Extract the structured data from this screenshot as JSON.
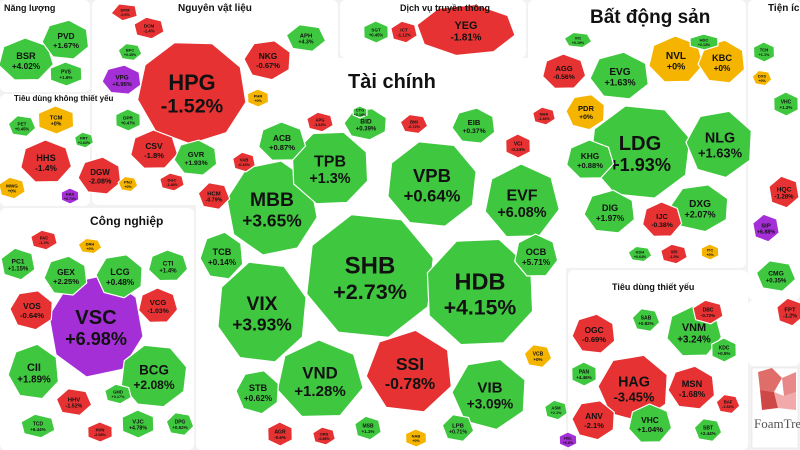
{
  "branding": {
    "logo_text": "FoamTree"
  },
  "colors": {
    "up": "#3fc73f",
    "down": "#e63232",
    "flat": "#f4b400",
    "ceiling": "#a52fd6",
    "sector_bg": "#ffffff"
  },
  "chart_data": {
    "type": "treemap",
    "metric": "percent change",
    "sectors": [
      {
        "name": "Năng lượng"
      },
      {
        "name": "Nguyên vật liệu"
      },
      {
        "name": "Dịch vụ truyền thông"
      },
      {
        "name": "Bất động sản"
      },
      {
        "name": "Tiện íc"
      },
      {
        "name": "Tài chính"
      },
      {
        "name": "Tiêu dùng không thiết yếu"
      },
      {
        "name": "Công nghiệp"
      },
      {
        "name": "Tiêu dùng thiết yếu"
      }
    ],
    "stocks": [
      {
        "symbol": "HPG",
        "change": "-1.52%",
        "status": "down",
        "sector": "Nguyên vật liệu"
      },
      {
        "symbol": "DCM",
        "change": "-1.4%",
        "status": "down",
        "sector": "Nguyên vật liệu"
      },
      {
        "symbol": "DPM",
        "change": "-0.6%",
        "status": "down",
        "sector": "Nguyên vật liệu"
      },
      {
        "symbol": "BFC",
        "change": "+0.45%",
        "status": "up",
        "sector": "Nguyên vật liệu"
      },
      {
        "symbol": "VPG",
        "change": "+6.95%",
        "status": "ceiling",
        "sector": "Nguyên vật liệu"
      },
      {
        "symbol": "NKG",
        "change": "-0.67%",
        "status": "down",
        "sector": "Nguyên vật liệu"
      },
      {
        "symbol": "CSV",
        "change": "-1.8%",
        "status": "down",
        "sector": "Nguyên vật liệu"
      },
      {
        "symbol": "GVR",
        "change": "+1.93%",
        "status": "up",
        "sector": "Nguyên vật liệu"
      },
      {
        "symbol": "PHR",
        "change": "+0%",
        "status": "flat",
        "sector": "Nguyên vật liệu"
      },
      {
        "symbol": "APH",
        "change": "+4.3%",
        "status": "up",
        "sector": "Nguyên vật liệu"
      },
      {
        "symbol": "DGC",
        "change": "-1.48%",
        "status": "down",
        "sector": "Nguyên vật liệu"
      },
      {
        "symbol": "DPR",
        "change": "+0.47%",
        "status": "up",
        "sector": "Nguyên vật liệu"
      },
      {
        "symbol": "BSR",
        "change": "+4.02%",
        "status": "up",
        "sector": "Năng lượng"
      },
      {
        "symbol": "PVD",
        "change": "+1.67%",
        "status": "up",
        "sector": "Năng lượng"
      },
      {
        "symbol": "PVS",
        "change": "+1.6%",
        "status": "up",
        "sector": "Năng lượng"
      },
      {
        "symbol": "YEG",
        "change": "-1.81%",
        "status": "down",
        "sector": "Dịch vụ truyền thông"
      },
      {
        "symbol": "ICT",
        "change": "-1.12%",
        "status": "down",
        "sector": "Dịch vụ truyền thông"
      },
      {
        "symbol": "SGT",
        "change": "+0.45%",
        "status": "up",
        "sector": "Dịch vụ truyền thông"
      },
      {
        "symbol": "HHS",
        "change": "-1.4%",
        "status": "down",
        "sector": "Tiêu dùng không thiết yếu"
      },
      {
        "symbol": "DGW",
        "change": "-2.08%",
        "status": "down",
        "sector": "Tiêu dùng không thiết yếu"
      },
      {
        "symbol": "TCM",
        "change": "+0%",
        "status": "flat",
        "sector": "Tiêu dùng không thiết yếu"
      },
      {
        "symbol": "PET",
        "change": "+0.45%",
        "status": "up",
        "sector": "Tiêu dùng không thiết yếu"
      },
      {
        "symbol": "MWG",
        "change": "+0%",
        "status": "flat",
        "sector": "Tiêu dùng không thiết yếu"
      },
      {
        "symbol": "HAX",
        "change": "+6.71%",
        "status": "ceiling",
        "sector": "Tiêu dùng không thiết yếu"
      },
      {
        "symbol": "PNJ",
        "change": "+0%",
        "status": "flat",
        "sector": "Tiêu dùng không thiết yếu"
      },
      {
        "symbol": "FRT",
        "change": "+1.62%",
        "status": "up",
        "sector": "Tiêu dùng không thiết yếu"
      },
      {
        "symbol": "SHB",
        "change": "+2.73%",
        "status": "up",
        "sector": "Tài chính"
      },
      {
        "symbol": "MBB",
        "change": "+3.65%",
        "status": "up",
        "sector": "Tài chính"
      },
      {
        "symbol": "TPB",
        "change": "+1.3%",
        "status": "up",
        "sector": "Tài chính"
      },
      {
        "symbol": "VPB",
        "change": "+0.64%",
        "status": "up",
        "sector": "Tài chính"
      },
      {
        "symbol": "EVF",
        "change": "+6.08%",
        "status": "up",
        "sector": "Tài chính"
      },
      {
        "symbol": "HDB",
        "change": "+4.15%",
        "status": "up",
        "sector": "Tài chính"
      },
      {
        "symbol": "VIX",
        "change": "+3.93%",
        "status": "up",
        "sector": "Tài chính"
      },
      {
        "symbol": "VND",
        "change": "+1.28%",
        "status": "up",
        "sector": "Tài chính"
      },
      {
        "symbol": "SSI",
        "change": "-0.78%",
        "status": "down",
        "sector": "Tài chính"
      },
      {
        "symbol": "VIB",
        "change": "+3.09%",
        "status": "up",
        "sector": "Tài chính"
      },
      {
        "symbol": "ACB",
        "change": "+0.87%",
        "status": "up",
        "sector": "Tài chính"
      },
      {
        "symbol": "TCB",
        "change": "+0.14%",
        "status": "up",
        "sector": "Tài chính"
      },
      {
        "symbol": "STB",
        "change": "+0.62%",
        "status": "up",
        "sector": "Tài chính"
      },
      {
        "symbol": "OCB",
        "change": "+5.71%",
        "status": "up",
        "sector": "Tài chính"
      },
      {
        "symbol": "APG",
        "change": "-1.63%",
        "status": "down",
        "sector": "Tài chính"
      },
      {
        "symbol": "BID",
        "change": "+0.39%",
        "status": "up",
        "sector": "Tài chính"
      },
      {
        "symbol": "BMI",
        "change": "-0.72%",
        "status": "down",
        "sector": "Tài chính"
      },
      {
        "symbol": "EIB",
        "change": "+0.37%",
        "status": "up",
        "sector": "Tài chính"
      },
      {
        "symbol": "VCI",
        "change": "-0.24%",
        "status": "down",
        "sector": "Tài chính"
      },
      {
        "symbol": "HCM",
        "change": "-0.79%",
        "status": "down",
        "sector": "Tài chính"
      },
      {
        "symbol": "VAB",
        "change": "-0.33%",
        "status": "down",
        "sector": "Tài chính"
      },
      {
        "symbol": "CTG",
        "change": "+0.18%",
        "status": "up",
        "sector": "Tài chính"
      },
      {
        "symbol": "LPB",
        "change": "+0.71%",
        "status": "up",
        "sector": "Tài chính"
      },
      {
        "symbol": "MSB",
        "change": "+1.1%",
        "status": "up",
        "sector": "Tài chính"
      },
      {
        "symbol": "AGR",
        "change": "-0.6%",
        "status": "down",
        "sector": "Tài chính"
      },
      {
        "symbol": "VCB",
        "change": "+0%",
        "status": "flat",
        "sector": "Tài chính"
      },
      {
        "symbol": "ORS",
        "change": "-0.85%",
        "status": "down",
        "sector": "Tài chính"
      },
      {
        "symbol": "NAB",
        "change": "+0%",
        "status": "flat",
        "sector": "Tài chính"
      },
      {
        "symbol": "VSC",
        "change": "+6.98%",
        "status": "ceiling",
        "sector": "Công nghiệp"
      },
      {
        "symbol": "GEX",
        "change": "+2.25%",
        "status": "up",
        "sector": "Công nghiệp"
      },
      {
        "symbol": "LCG",
        "change": "+0.48%",
        "status": "up",
        "sector": "Công nghiệp"
      },
      {
        "symbol": "CTI",
        "change": "+1.4%",
        "status": "up",
        "sector": "Công nghiệp"
      },
      {
        "symbol": "PC1",
        "change": "+1.15%",
        "status": "up",
        "sector": "Công nghiệp"
      },
      {
        "symbol": "VOS",
        "change": "-0.64%",
        "status": "down",
        "sector": "Công nghiệp"
      },
      {
        "symbol": "VCG",
        "change": "-1.03%",
        "status": "down",
        "sector": "Công nghiệp"
      },
      {
        "symbol": "CII",
        "change": "+1.89%",
        "status": "up",
        "sector": "Công nghiệp"
      },
      {
        "symbol": "BCG",
        "change": "+2.08%",
        "status": "up",
        "sector": "Công nghiệp"
      },
      {
        "symbol": "HHV",
        "change": "-1.52%",
        "status": "down",
        "sector": "Công nghiệp"
      },
      {
        "symbol": "GMD",
        "change": "+0.17%",
        "status": "up",
        "sector": "Công nghiệp"
      },
      {
        "symbol": "VJC",
        "change": "+4.78%",
        "status": "up",
        "sector": "Công nghiệp"
      },
      {
        "symbol": "DPG",
        "change": "+0.52%",
        "status": "up",
        "sector": "Công nghiệp"
      },
      {
        "symbol": "TCD",
        "change": "+6.44%",
        "status": "up",
        "sector": "Công nghiệp"
      },
      {
        "symbol": "HVN",
        "change": "-2.58%",
        "status": "down",
        "sector": "Công nghiệp"
      },
      {
        "symbol": "DRH",
        "change": "+0%",
        "status": "flat",
        "sector": "Công nghiệp"
      },
      {
        "symbol": "PAC",
        "change": "-1.2%",
        "status": "down",
        "sector": "Công nghiệp"
      },
      {
        "symbol": "LDG",
        "change": "+1.93%",
        "status": "up",
        "sector": "Bất động sản"
      },
      {
        "symbol": "NVL",
        "change": "+0%",
        "status": "flat",
        "sector": "Bất động sản"
      },
      {
        "symbol": "KBC",
        "change": "+0%",
        "status": "flat",
        "sector": "Bất động sản"
      },
      {
        "symbol": "NLG",
        "change": "+1.63%",
        "status": "up",
        "sector": "Bất động sản"
      },
      {
        "symbol": "AGG",
        "change": "-0.56%",
        "status": "down",
        "sector": "Bất động sản"
      },
      {
        "symbol": "EVG",
        "change": "+1.63%",
        "status": "up",
        "sector": "Bất động sản"
      },
      {
        "symbol": "PDR",
        "change": "+0%",
        "status": "flat",
        "sector": "Bất động sản"
      },
      {
        "symbol": "KHG",
        "change": "+0.88%",
        "status": "up",
        "sector": "Bất động sản"
      },
      {
        "symbol": "DIG",
        "change": "+1.97%",
        "status": "up",
        "sector": "Bất động sản"
      },
      {
        "symbol": "DXG",
        "change": "+2.07%",
        "status": "up",
        "sector": "Bất động sản"
      },
      {
        "symbol": "IJC",
        "change": "-0.38%",
        "status": "down",
        "sector": "Bất động sản"
      },
      {
        "symbol": "VPI",
        "change": "-1.5%",
        "status": "down",
        "sector": "Bất động sản"
      },
      {
        "symbol": "HDC",
        "change": "+2.13%",
        "status": "up",
        "sector": "Bất động sản"
      },
      {
        "symbol": "VIC",
        "change": "+0.19%",
        "status": "up",
        "sector": "Bất động sản"
      },
      {
        "symbol": "NHA",
        "change": "-1.32%",
        "status": "down",
        "sector": "Bất động sản"
      },
      {
        "symbol": "ITC",
        "change": "+0%",
        "status": "flat",
        "sector": "Bất động sản"
      },
      {
        "symbol": "KDH",
        "change": "+0.64%",
        "status": "up",
        "sector": "Bất động sản"
      },
      {
        "symbol": "SIP",
        "change": "+6.88%",
        "status": "ceiling",
        "sector": "Bất động sản"
      },
      {
        "symbol": "TCH",
        "change": "+1.1%",
        "status": "up",
        "sector": "Bất động sản"
      },
      {
        "symbol": "DXS",
        "change": "+0%",
        "status": "flat",
        "sector": "Bất động sản"
      },
      {
        "symbol": "HQC",
        "change": "-1.28%",
        "status": "down",
        "sector": "Tiện íc"
      },
      {
        "symbol": "VHC",
        "change": "+1.2%",
        "status": "up",
        "sector": "Tiện íc"
      },
      {
        "symbol": "CMG",
        "change": "+0.35%",
        "status": "up",
        "sector": "Tiện íc"
      },
      {
        "symbol": "FPT",
        "change": "-1.2%",
        "status": "down",
        "sector": "Tiện íc"
      },
      {
        "symbol": "HAG",
        "change": "-3.45%",
        "status": "down",
        "sector": "Tiêu dùng thiết yếu"
      },
      {
        "symbol": "VNM",
        "change": "+3.24%",
        "status": "up",
        "sector": "Tiêu dùng thiết yếu"
      },
      {
        "symbol": "MSN",
        "change": "-1.68%",
        "status": "down",
        "sector": "Tiêu dùng thiết yếu"
      },
      {
        "symbol": "ANV",
        "change": "-2.1%",
        "status": "down",
        "sector": "Tiêu dùng thiết yếu"
      },
      {
        "symbol": "VHC",
        "change": "+1.04%",
        "status": "up",
        "sector": "Tiêu dùng thiết yếu"
      },
      {
        "symbol": "OGC",
        "change": "-0.69%",
        "status": "down",
        "sector": "Tiêu dùng thiết yếu"
      },
      {
        "symbol": "PAN",
        "change": "+4.46%",
        "status": "up",
        "sector": "Tiêu dùng thiết yếu"
      },
      {
        "symbol": "SAB",
        "change": "+0.82%",
        "status": "up",
        "sector": "Tiêu dùng thiết yếu"
      },
      {
        "symbol": "DBC",
        "change": "-0.72%",
        "status": "down",
        "sector": "Tiêu dùng thiết yếu"
      },
      {
        "symbol": "KDC",
        "change": "+0.5%",
        "status": "up",
        "sector": "Tiêu dùng thiết yếu"
      },
      {
        "symbol": "SBT",
        "change": "+2.44%",
        "status": "up",
        "sector": "Tiêu dùng thiết yếu"
      },
      {
        "symbol": "ASM",
        "change": "+2.1%",
        "status": "up",
        "sector": "Tiêu dùng thiết yếu"
      },
      {
        "symbol": "HSL",
        "change": "+6.8%",
        "status": "ceiling",
        "sector": "Tiêu dùng thiết yếu"
      },
      {
        "symbol": "BAF",
        "change": "-1.52%",
        "status": "down",
        "sector": "Tiêu dùng thiết yếu"
      }
    ]
  }
}
